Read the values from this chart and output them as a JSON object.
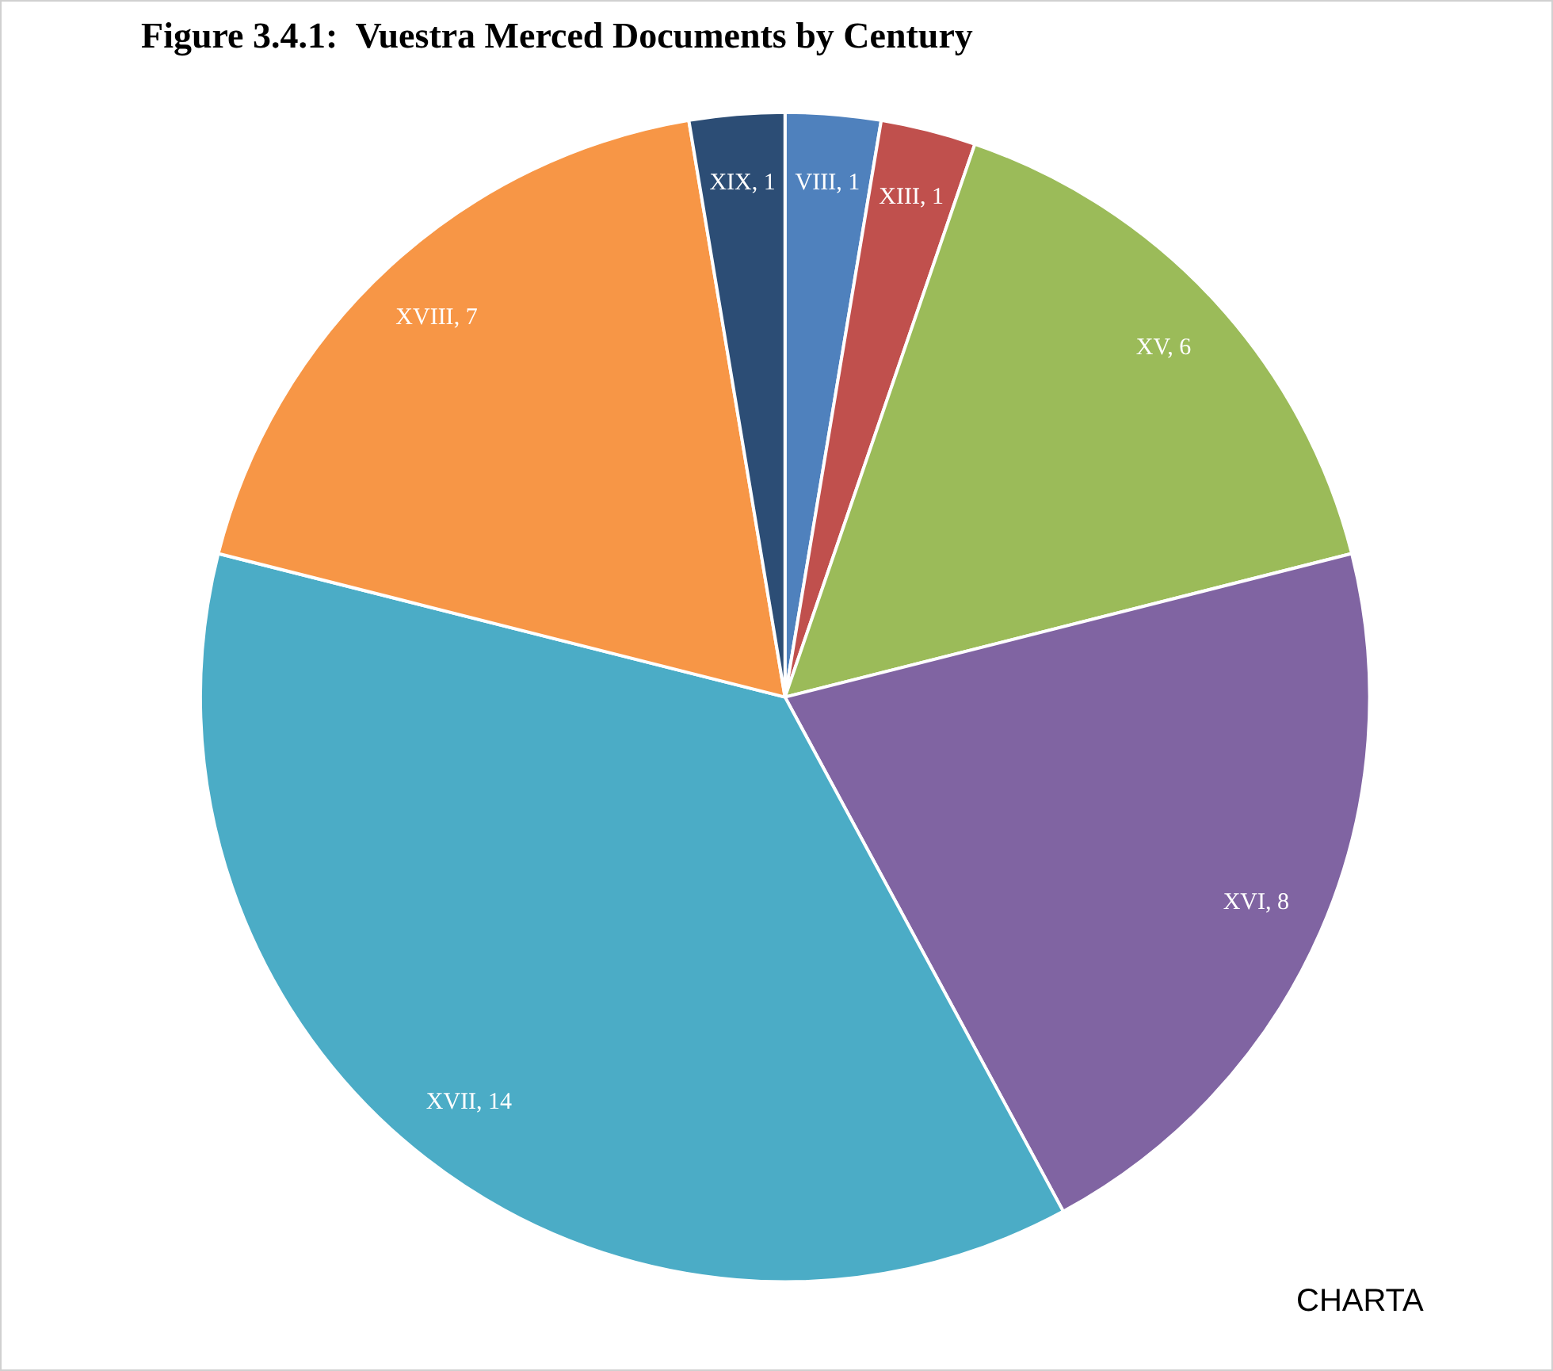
{
  "chart_data": {
    "type": "pie",
    "title": "Figure 3.4.1:  Vuestra Merced Documents by Century",
    "categories": [
      "VIII",
      "XIII",
      "XV",
      "XVI",
      "XVII",
      "XVIII",
      "XIX"
    ],
    "values": [
      1,
      1,
      6,
      8,
      14,
      7,
      1
    ],
    "colors": [
      "#4f81bd",
      "#c0504d",
      "#9bbb59",
      "#8064a2",
      "#4bacc6",
      "#f79646",
      "#2c4d75"
    ],
    "value_labels": [
      ", 1",
      ", 1",
      ", 6",
      ", 8",
      ", 14",
      ", 7",
      ", 1"
    ],
    "legend": false,
    "annotations": [
      "CHARTA"
    ]
  }
}
